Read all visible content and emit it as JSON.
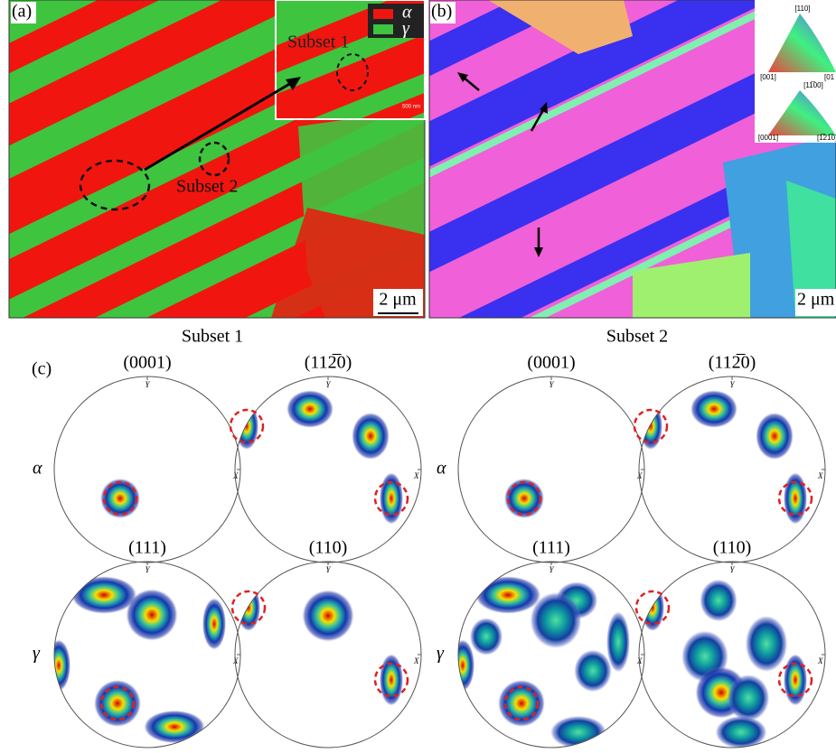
{
  "panel_a": {
    "label": "(a)",
    "legend": [
      "α",
      "γ"
    ],
    "inset_label": "Subset 1",
    "inset_scale": "500 nm",
    "subset_2_label": "Subset 2",
    "scale_bar": "2 μm"
  },
  "panel_b": {
    "label": "(b)",
    "ipf_cubic": [
      "[110]",
      "[001]",
      "[01"
    ],
    "ipf_hex": [
      "[11̅00]",
      "[0001]",
      "[1̅21̅0]"
    ],
    "scale_bar": "2 μm"
  },
  "panel_c": {
    "label": "(c)",
    "subsets": [
      "Subset 1",
      "Subset 2"
    ],
    "planes": [
      "(0001)",
      "(112̅0)",
      "(111)",
      "(110)"
    ],
    "phases": [
      "α",
      "γ"
    ],
    "axis_x": "X",
    "axis_y": "Y"
  }
}
